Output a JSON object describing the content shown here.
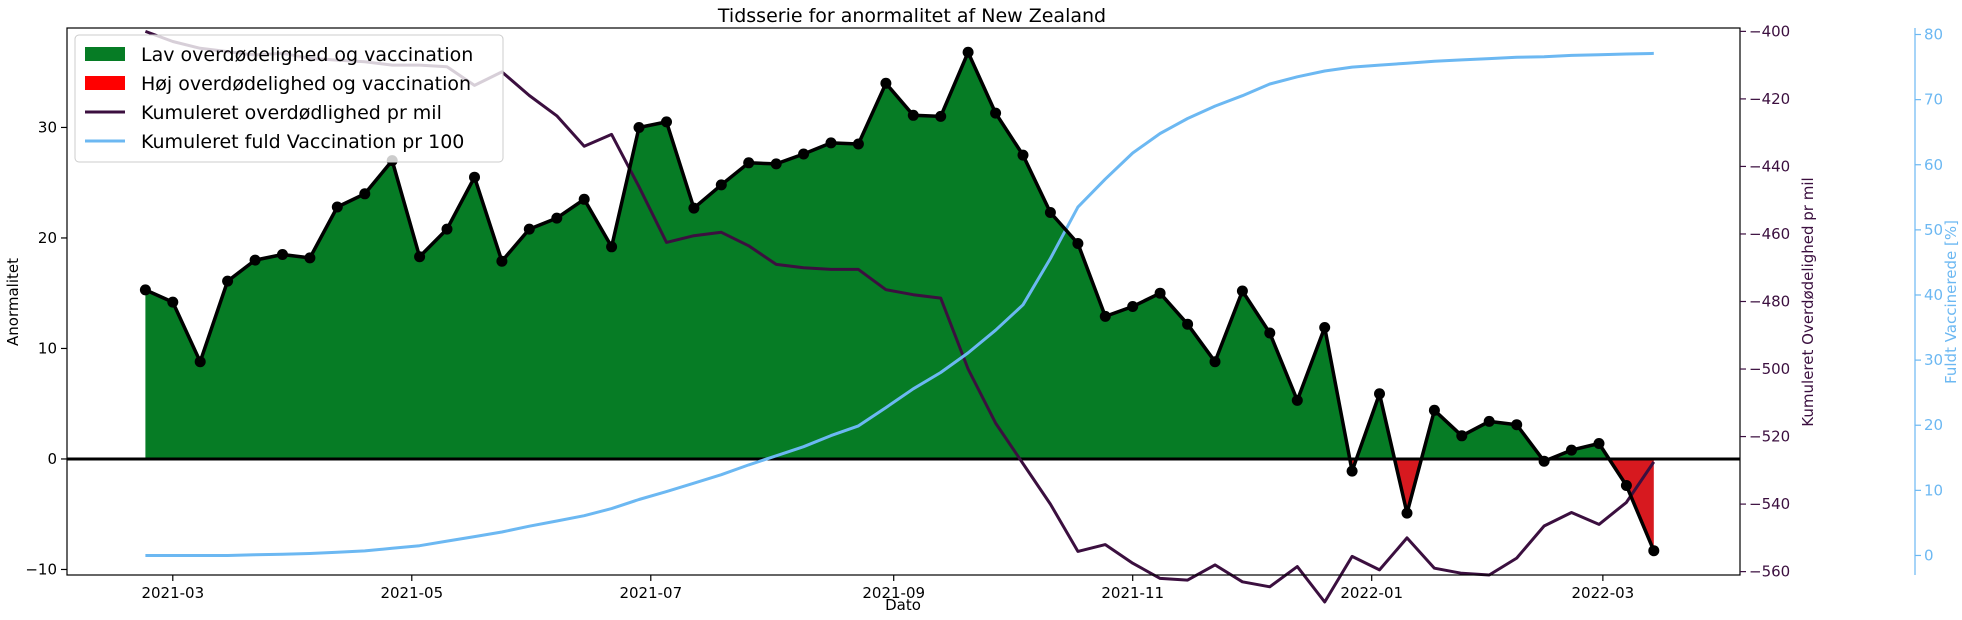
{
  "chart_data": {
    "type": "area",
    "title": "Tidsserie for anormalitet af New Zealand",
    "xlabel": "Dato",
    "ylabel": "Anormalitet",
    "ylabel_right": "Kumuleret Overdødelighed pr mil",
    "ylabel_right2": "Fuldt Vaccinerede [%]",
    "right_color": "#3b0f3f",
    "right2_color": "#6cb8f2",
    "pos_color": "#067c25",
    "neg_color": "#d7191f",
    "x_ticks": [
      "2021-03-01",
      "2021-05-01",
      "2021-07-01",
      "2021-09-01",
      "2021-11-01",
      "2022-01-01",
      "2022-03-01"
    ],
    "x_tick_labels": [
      "2021-03",
      "2021-05",
      "2021-07",
      "2021-09",
      "2021-11",
      "2022-01",
      "2022-03"
    ],
    "xlim": [
      "2021-02-02",
      "2022-04-05"
    ],
    "ylim": [
      -10.5,
      39
    ],
    "y_ticks": [
      -10,
      0,
      10,
      20,
      30
    ],
    "ylim_right": [
      -561,
      -399
    ],
    "y_ticks_right": [
      -560,
      -540,
      -520,
      -500,
      -480,
      -460,
      -440,
      -420,
      -400
    ],
    "ylim_right2": [
      -3,
      81
    ],
    "y_ticks_right2": [
      0,
      10,
      20,
      30,
      40,
      50,
      60,
      70,
      80
    ],
    "legend": {
      "placement": "top-left",
      "entries": [
        {
          "label": "Lav overdødelighed og vaccination",
          "kind": "patch",
          "color": "#067c25"
        },
        {
          "label": "Høj overdødelighed og vaccination",
          "kind": "patch",
          "color": "#ff0000"
        },
        {
          "label": "Kumuleret overdødlighed pr mil",
          "kind": "line",
          "color": "#3b0f3f"
        },
        {
          "label": "Kumuleret fuld Vaccination pr 100",
          "kind": "line",
          "color": "#6cb8f2"
        }
      ]
    },
    "dates": [
      "2021-02-22",
      "2021-03-01",
      "2021-03-08",
      "2021-03-15",
      "2021-03-22",
      "2021-03-29",
      "2021-04-05",
      "2021-04-12",
      "2021-04-19",
      "2021-04-26",
      "2021-05-03",
      "2021-05-10",
      "2021-05-17",
      "2021-05-24",
      "2021-05-31",
      "2021-06-07",
      "2021-06-14",
      "2021-06-21",
      "2021-06-28",
      "2021-07-05",
      "2021-07-12",
      "2021-07-19",
      "2021-07-26",
      "2021-08-02",
      "2021-08-09",
      "2021-08-16",
      "2021-08-23",
      "2021-08-30",
      "2021-09-06",
      "2021-09-13",
      "2021-09-20",
      "2021-09-27",
      "2021-10-04",
      "2021-10-11",
      "2021-10-18",
      "2021-10-25",
      "2021-11-01",
      "2021-11-08",
      "2021-11-15",
      "2021-11-22",
      "2021-11-29",
      "2021-12-06",
      "2021-12-13",
      "2021-12-20",
      "2021-12-27",
      "2022-01-03",
      "2022-01-10",
      "2022-01-17",
      "2022-01-24",
      "2022-01-31",
      "2022-02-07",
      "2022-02-14",
      "2022-02-21",
      "2022-02-28",
      "2022-03-07",
      "2022-03-14"
    ],
    "series": [
      {
        "name": "Anormalitet",
        "axis": "left",
        "values": [
          15.3,
          14.2,
          8.8,
          16.1,
          18.0,
          18.5,
          18.2,
          22.8,
          24.0,
          27.0,
          18.3,
          20.8,
          25.5,
          17.9,
          20.8,
          21.8,
          23.5,
          19.2,
          30.0,
          30.5,
          22.7,
          24.8,
          26.8,
          26.7,
          27.6,
          28.6,
          28.5,
          34.0,
          31.1,
          31.0,
          36.8,
          31.3,
          27.5,
          22.3,
          19.5,
          12.9,
          13.8,
          15.0,
          12.2,
          8.8,
          15.2,
          11.4,
          5.3,
          11.9,
          -1.1,
          5.9,
          -4.9,
          4.4,
          2.1,
          3.4,
          3.1,
          -0.2,
          0.8,
          1.4,
          -2.4,
          -8.3
        ]
      },
      {
        "name": "Kumuleret overdødlighed pr mil",
        "axis": "right",
        "values": [
          -400.0,
          -403.0,
          -405.0,
          -406.0,
          -407.0,
          -406.5,
          -408.0,
          -408.5,
          -409.0,
          -410.0,
          -410.0,
          -410.5,
          -416.0,
          -412.0,
          -419.0,
          -425.0,
          -434.0,
          -430.5,
          -446.0,
          -462.5,
          -460.5,
          -459.5,
          -463.5,
          -469.0,
          -470.0,
          -470.5,
          -470.5,
          -476.5,
          -478.0,
          -479.0,
          -500.0,
          -516.0,
          -528.0,
          -540.0,
          -554.0,
          -552.0,
          -557.5,
          -562.0,
          -562.5,
          -558.0,
          -563.0,
          -564.5,
          -558.5,
          -569.0,
          -555.5,
          -559.5,
          -550.0,
          -559.0,
          -560.5,
          -561.0,
          -556.0,
          -546.5,
          -542.5,
          -546.0,
          -539.5,
          -527.5
        ]
      },
      {
        "name": "Kumuleret fuld Vaccination pr 100",
        "axis": "right2",
        "values": [
          0.0,
          0.0,
          0.0,
          0.0,
          0.1,
          0.2,
          0.3,
          0.5,
          0.7,
          1.1,
          1.5,
          2.2,
          2.9,
          3.6,
          4.5,
          5.3,
          6.1,
          7.2,
          8.6,
          9.8,
          11.1,
          12.4,
          13.9,
          15.3,
          16.7,
          18.4,
          19.9,
          22.7,
          25.6,
          28.1,
          31.1,
          34.6,
          38.5,
          45.6,
          53.5,
          57.8,
          61.8,
          64.8,
          67.1,
          69.0,
          70.6,
          72.4,
          73.5,
          74.4,
          75.0,
          75.3,
          75.6,
          75.9,
          76.1,
          76.3,
          76.5,
          76.6,
          76.8,
          76.9,
          77.0,
          77.1
        ]
      }
    ]
  }
}
